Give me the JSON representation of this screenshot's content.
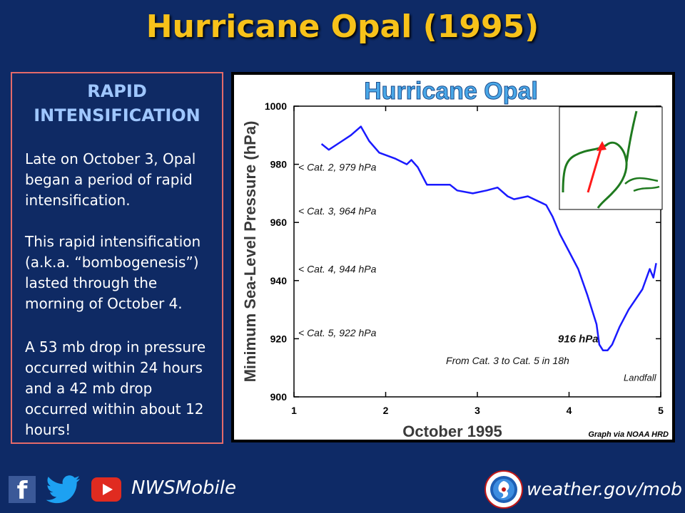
{
  "header": {
    "title": "Hurricane Opal (1995)"
  },
  "sidebar": {
    "heading_line1": "RAPID",
    "heading_line2": "INTENSIFICATION",
    "para1": "Late on October 3, Opal began a period of rapid intensification.",
    "para2": "This rapid intensification (a.k.a. “bombogenesis”) lasted through the morning of October 4.",
    "para3": "A 53 mb drop in pressure occurred within 24 hours and a 42 mb drop occurred within about 12 hours!"
  },
  "footer": {
    "facebook_icon": "facebook-icon",
    "twitter_icon": "twitter-icon",
    "youtube_icon": "youtube-icon",
    "handle": "NWSMobile",
    "website": "weather.gov/mob"
  },
  "colors": {
    "background": "#0e2a66",
    "title": "#f7c21a",
    "sidebar_border": "#e46a6a",
    "heading": "#9fc7ff",
    "series": "#1a1aff",
    "chart_title": "#4aa8e8",
    "map_coast": "#1f7a1f",
    "track": "#ff1a1a"
  },
  "chart_data": {
    "type": "line",
    "title": "Hurricane Opal",
    "xlabel": "October 1995",
    "ylabel": "Minimum Sea-Level Pressure (hPa)",
    "xlim": [
      1,
      5
    ],
    "ylim": [
      900,
      1000
    ],
    "xticks": [
      "1",
      "2",
      "3",
      "4",
      "5"
    ],
    "yticks": [
      "900",
      "920",
      "940",
      "960",
      "980",
      "1000"
    ],
    "series": [
      {
        "x": [
          1.3,
          1.38,
          1.5,
          1.62,
          1.73,
          1.82,
          1.93,
          2.1,
          2.23,
          2.28,
          2.35,
          2.45,
          2.7,
          2.78,
          2.95,
          3.1,
          3.22,
          3.33,
          3.4,
          3.55,
          3.75,
          3.82,
          3.9,
          4.0,
          4.1,
          4.2,
          4.3,
          4.33,
          4.37,
          4.42,
          4.47,
          4.55,
          4.65,
          4.8,
          4.88,
          4.92,
          4.95
        ],
        "y": [
          987,
          985,
          987.5,
          990,
          993,
          988,
          984,
          982,
          980,
          981.5,
          979,
          973,
          973,
          971,
          970,
          971,
          972,
          969,
          968,
          969,
          966,
          962,
          956,
          950,
          944,
          935,
          925,
          918,
          916,
          916,
          918,
          924,
          930,
          937,
          944,
          941,
          946
        ]
      }
    ],
    "annotations": [
      "< Cat. 2, 979 hPa",
      "< Cat. 3, 964 hPa",
      "< Cat. 4, 944 hPa",
      "< Cat. 5, 922 hPa",
      "916 hPa",
      "From Cat. 3 to Cat. 5 in 18h",
      "Landfall",
      "Graph via NOAA HRD"
    ],
    "grid": false,
    "inset": "Gulf of Mexico track map"
  }
}
